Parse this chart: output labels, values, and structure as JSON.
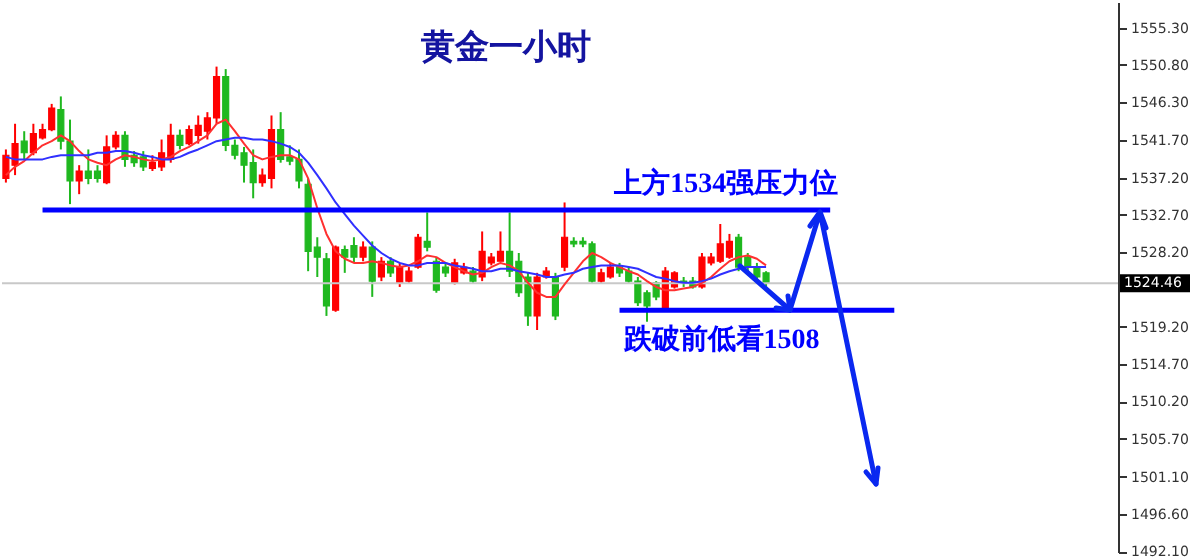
{
  "chart_data": {
    "type": "candlestick",
    "title": "黄金一小时",
    "categories": [
      null,
      null,
      null,
      null,
      null,
      null,
      null,
      null,
      null,
      null,
      null,
      null,
      null,
      null,
      null,
      null,
      null,
      null,
      null,
      null,
      null,
      null,
      null,
      null,
      null,
      null,
      null,
      null,
      null,
      null,
      null,
      null,
      null,
      null,
      null,
      null,
      null,
      null,
      null,
      null,
      null,
      null,
      null,
      null,
      null,
      null,
      null,
      null,
      null,
      null,
      null,
      null,
      null,
      null,
      null,
      null,
      null,
      null,
      null,
      null,
      null,
      null,
      null,
      null,
      null,
      null,
      null,
      null,
      null,
      null,
      null,
      null,
      null,
      null,
      null,
      null,
      null,
      null,
      null,
      null,
      null,
      null,
      null,
      null,
      null,
      null,
      null,
      null,
      null,
      null,
      null,
      null,
      null,
      null,
      null,
      null,
      null,
      null,
      null,
      null,
      null,
      null,
      null,
      null,
      null,
      null,
      null,
      null,
      null,
      null,
      null,
      null,
      null,
      null,
      null,
      null,
      null,
      null,
      null,
      null,
      null,
      null
    ],
    "ohlc": [
      [
        1537.1,
        1540.6,
        1536.6,
        1539.9
      ],
      [
        1538.7,
        1543.7,
        1537.5,
        1541.3
      ],
      [
        1541.6,
        1542.8,
        1539.4,
        1540.2
      ],
      [
        1540.2,
        1543.7,
        1539.9,
        1542.5
      ],
      [
        1542.0,
        1543.7,
        1541.8,
        1543.0
      ],
      [
        1543.0,
        1546.1,
        1542.8,
        1545.6
      ],
      [
        1545.4,
        1547.0,
        1540.6,
        1541.6
      ],
      [
        1541.6,
        1544.2,
        1534.0,
        1536.8
      ],
      [
        1536.8,
        1538.7,
        1535.2,
        1538.0
      ],
      [
        1538.0,
        1540.6,
        1536.4,
        1537.1
      ],
      [
        1538.0,
        1538.7,
        1536.6,
        1537.1
      ],
      [
        1536.6,
        1542.3,
        1536.4,
        1540.9
      ],
      [
        1540.9,
        1542.8,
        1540.6,
        1542.3
      ],
      [
        1542.3,
        1542.8,
        1538.5,
        1539.4
      ],
      [
        1539.9,
        1540.4,
        1538.5,
        1539.0
      ],
      [
        1539.7,
        1540.4,
        1538.0,
        1538.5
      ],
      [
        1538.3,
        1539.9,
        1538.0,
        1539.0
      ],
      [
        1538.5,
        1541.8,
        1538.0,
        1540.2
      ],
      [
        1539.4,
        1543.7,
        1539.0,
        1542.3
      ],
      [
        1542.3,
        1543.0,
        1540.6,
        1541.1
      ],
      [
        1541.3,
        1543.5,
        1541.1,
        1543.0
      ],
      [
        1542.3,
        1544.7,
        1541.3,
        1543.5
      ],
      [
        1542.8,
        1545.1,
        1541.8,
        1544.4
      ],
      [
        1544.4,
        1550.6,
        1543.7,
        1549.4
      ],
      [
        1549.4,
        1550.3,
        1540.4,
        1541.1
      ],
      [
        1541.1,
        1541.8,
        1539.4,
        1539.9
      ],
      [
        1540.2,
        1540.9,
        1536.6,
        1538.7
      ],
      [
        1539.0,
        1540.6,
        1534.7,
        1536.6
      ],
      [
        1536.6,
        1538.3,
        1536.1,
        1537.5
      ],
      [
        1537.1,
        1544.7,
        1535.9,
        1543.0
      ],
      [
        1543.0,
        1545.1,
        1539.0,
        1539.4
      ],
      [
        1539.7,
        1541.1,
        1538.7,
        1539.2
      ],
      [
        1539.4,
        1540.6,
        1535.9,
        1536.8
      ],
      [
        1536.4,
        1537.1,
        1525.9,
        1528.3
      ],
      [
        1528.8,
        1530.0,
        1525.2,
        1527.6
      ],
      [
        1527.4,
        1528.1,
        1520.5,
        1521.7
      ],
      [
        1521.2,
        1529.0,
        1521.0,
        1528.8
      ],
      [
        1528.5,
        1529.0,
        1525.7,
        1527.6
      ],
      [
        1529.0,
        1530.0,
        1526.9,
        1527.6
      ],
      [
        1527.6,
        1529.5,
        1527.1,
        1528.8
      ],
      [
        1528.8,
        1529.5,
        1522.8,
        1524.7
      ],
      [
        1525.2,
        1527.6,
        1524.7,
        1527.1
      ],
      [
        1527.1,
        1527.6,
        1525.2,
        1525.7
      ],
      [
        1524.5,
        1526.9,
        1524.0,
        1526.4
      ],
      [
        1524.7,
        1526.4,
        1524.5,
        1525.9
      ],
      [
        1526.4,
        1530.4,
        1526.2,
        1530.0
      ],
      [
        1529.5,
        1533.0,
        1528.3,
        1528.8
      ],
      [
        1527.1,
        1527.6,
        1523.3,
        1523.6
      ],
      [
        1526.4,
        1526.9,
        1525.2,
        1525.7
      ],
      [
        1524.5,
        1527.4,
        1524.3,
        1526.9
      ],
      [
        1525.7,
        1526.9,
        1525.5,
        1526.4
      ],
      [
        1525.9,
        1526.4,
        1524.5,
        1524.7
      ],
      [
        1525.2,
        1530.7,
        1524.7,
        1528.3
      ],
      [
        1526.9,
        1528.1,
        1526.6,
        1527.6
      ],
      [
        1527.1,
        1530.7,
        1527.1,
        1528.3
      ],
      [
        1528.3,
        1533.0,
        1525.2,
        1525.9
      ],
      [
        1527.1,
        1528.1,
        1522.8,
        1523.3
      ],
      [
        1525.2,
        1525.7,
        1519.3,
        1520.5
      ],
      [
        1520.5,
        1525.7,
        1518.8,
        1525.2
      ],
      [
        1525.2,
        1526.4,
        1525.0,
        1525.9
      ],
      [
        1525.2,
        1525.7,
        1520.0,
        1520.5
      ],
      [
        1526.4,
        1534.2,
        1525.9,
        1530.0
      ],
      [
        1529.5,
        1530.0,
        1528.8,
        1529.2
      ],
      [
        1529.5,
        1530.0,
        1528.8,
        1529.2
      ],
      [
        1529.2,
        1529.5,
        1524.5,
        1524.7
      ],
      [
        1524.7,
        1526.2,
        1524.5,
        1525.7
      ],
      [
        1525.2,
        1526.9,
        1525.0,
        1526.4
      ],
      [
        1526.4,
        1526.9,
        1525.2,
        1525.7
      ],
      [
        1525.9,
        1526.4,
        1524.5,
        1524.7
      ],
      [
        1524.7,
        1525.2,
        1521.7,
        1522.1
      ],
      [
        1523.3,
        1523.6,
        1519.8,
        1521.7
      ],
      [
        1524.5,
        1524.7,
        1522.4,
        1522.8
      ],
      [
        1521.2,
        1526.4,
        1521.2,
        1525.9
      ],
      [
        1524.0,
        1525.9,
        1523.8,
        1525.7
      ],
      [
        1524.7,
        1525.2,
        1524.0,
        1524.5
      ],
      [
        1524.7,
        1525.2,
        1523.8,
        1524.0
      ],
      [
        1524.0,
        1528.1,
        1523.8,
        1527.6
      ],
      [
        1526.9,
        1528.1,
        1526.6,
        1527.6
      ],
      [
        1527.1,
        1531.6,
        1526.9,
        1529.2
      ],
      [
        1527.6,
        1530.4,
        1527.4,
        1529.5
      ],
      [
        1530.0,
        1530.4,
        1525.9,
        1526.4
      ],
      [
        1527.6,
        1528.1,
        1525.9,
        1526.4
      ],
      [
        1526.4,
        1526.9,
        1524.7,
        1525.2
      ],
      [
        1525.7,
        1525.9,
        1524.0,
        1524.5
      ],
      null,
      null,
      null,
      null,
      null,
      null,
      null,
      null,
      null,
      null,
      null,
      null,
      null,
      null,
      null,
      null,
      null,
      null,
      null,
      null,
      null,
      null,
      null,
      null,
      null,
      null,
      null,
      null,
      null,
      null,
      null,
      null,
      null,
      null,
      null,
      null,
      null,
      null
    ],
    "colors": [
      "#ff0000",
      "#ff0000",
      "#1fb81f",
      "#ff0000",
      "#ff0000",
      "#ff0000",
      "#1fb81f",
      "#1fb81f",
      "#ff0000",
      "#1fb81f",
      "#1fb81f",
      "#ff0000",
      "#ff0000",
      "#1fb81f",
      "#1fb81f",
      "#1fb81f",
      "#ff0000",
      "#ff0000",
      "#ff0000",
      "#1fb81f",
      "#ff0000",
      "#ff0000",
      "#ff0000",
      "#ff0000",
      "#1fb81f",
      "#1fb81f",
      "#1fb81f",
      "#1fb81f",
      "#ff0000",
      "#ff0000",
      "#1fb81f",
      "#1fb81f",
      "#1fb81f",
      "#1fb81f",
      "#1fb81f",
      "#1fb81f",
      "#ff0000",
      "#1fb81f",
      "#1fb81f",
      "#ff0000",
      "#1fb81f",
      "#ff0000",
      "#1fb81f",
      "#ff0000",
      "#ff0000",
      "#ff0000",
      "#1fb81f",
      "#1fb81f",
      "#1fb81f",
      "#ff0000",
      "#ff0000",
      "#1fb81f",
      "#ff0000",
      "#ff0000",
      "#ff0000",
      "#1fb81f",
      "#1fb81f",
      "#1fb81f",
      "#ff0000",
      "#ff0000",
      "#1fb81f",
      "#ff0000",
      "#1fb81f",
      "#1fb81f",
      "#1fb81f",
      "#ff0000",
      "#ff0000",
      "#1fb81f",
      "#1fb81f",
      "#1fb81f",
      "#1fb81f",
      "#1fb81f",
      "#ff0000",
      "#ff0000",
      "#1fb81f",
      "#1fb81f",
      "#ff0000",
      "#ff0000",
      "#ff0000",
      "#ff0000",
      "#1fb81f",
      "#1fb81f",
      "#1fb81f",
      "#1fb81f",
      null,
      null,
      null,
      null,
      null,
      null,
      null,
      null,
      null,
      null,
      null,
      null,
      null,
      null,
      null,
      null,
      null,
      null,
      null,
      null,
      null,
      null,
      null,
      null,
      null,
      null,
      null,
      null,
      null,
      null,
      null,
      null,
      null,
      null,
      null,
      null,
      null,
      null
    ],
    "series": [
      {
        "type": "line",
        "color": "#ff3030",
        "values": [
          1537.5,
          1538.5,
          1539.2,
          1540.2,
          1541.1,
          1541.6,
          1542.3,
          1541.6,
          1540.4,
          1539.4,
          1539.0,
          1538.7,
          1539.4,
          1539.9,
          1539.7,
          1539.4,
          1539.2,
          1539.4,
          1539.7,
          1540.4,
          1540.9,
          1541.6,
          1542.3,
          1543.7,
          1544.2,
          1542.8,
          1541.3,
          1539.9,
          1539.4,
          1539.7,
          1539.9,
          1539.9,
          1539.4,
          1537.1,
          1533.5,
          1530.4,
          1528.3,
          1527.4,
          1526.9,
          1526.9,
          1527.1,
          1526.9,
          1526.6,
          1526.4,
          1526.6,
          1527.1,
          1527.8,
          1527.6,
          1526.9,
          1526.4,
          1525.9,
          1525.5,
          1525.7,
          1526.4,
          1526.9,
          1526.6,
          1525.9,
          1524.5,
          1523.3,
          1522.8,
          1522.8,
          1524.3,
          1525.7,
          1527.1,
          1528.1,
          1527.6,
          1526.9,
          1526.4,
          1525.9,
          1525.5,
          1524.7,
          1524.0,
          1523.6,
          1523.6,
          1523.8,
          1524.0,
          1524.5,
          1525.2,
          1526.2,
          1527.1,
          1527.6,
          1527.8,
          1527.4,
          1526.6,
          null,
          null,
          null,
          null,
          null,
          null,
          null,
          null,
          null,
          null,
          null,
          null,
          null,
          null,
          null,
          null,
          null,
          null,
          null,
          null,
          null,
          null,
          null,
          null,
          null,
          null,
          null,
          null,
          null,
          null,
          null,
          null,
          null,
          null,
          null,
          null,
          null,
          null
        ]
      },
      {
        "type": "line",
        "color": "#3030ff",
        "values": [
          1539.7,
          1539.4,
          1539.4,
          1539.4,
          1539.4,
          1539.7,
          1539.9,
          1539.9,
          1539.9,
          1539.9,
          1540.2,
          1540.2,
          1540.4,
          1540.4,
          1540.2,
          1539.9,
          1539.7,
          1539.4,
          1539.4,
          1539.7,
          1540.2,
          1540.6,
          1541.1,
          1541.6,
          1541.8,
          1542.0,
          1542.0,
          1541.8,
          1541.8,
          1541.6,
          1541.3,
          1540.9,
          1540.2,
          1539.0,
          1537.5,
          1535.9,
          1534.2,
          1532.8,
          1531.4,
          1530.2,
          1529.0,
          1528.1,
          1527.4,
          1526.9,
          1526.6,
          1526.6,
          1526.9,
          1526.9,
          1526.9,
          1526.6,
          1526.4,
          1526.2,
          1525.9,
          1525.9,
          1526.2,
          1526.2,
          1525.9,
          1525.7,
          1525.5,
          1525.2,
          1525.2,
          1525.5,
          1525.7,
          1526.2,
          1526.4,
          1526.6,
          1526.6,
          1526.6,
          1526.4,
          1526.2,
          1525.7,
          1525.2,
          1525.0,
          1524.7,
          1524.5,
          1524.5,
          1524.7,
          1525.0,
          1525.5,
          1525.9,
          1526.2,
          1526.4,
          1526.4,
          1526.4,
          null,
          null,
          null,
          null,
          null,
          null,
          null,
          null,
          null,
          null,
          null,
          null,
          null,
          null,
          null,
          null,
          null,
          null,
          null,
          null,
          null,
          null,
          null,
          null,
          null,
          null,
          null,
          null,
          null,
          null,
          null,
          null,
          null,
          null,
          null,
          null,
          null,
          null
        ]
      },
      {
        "type": "line",
        "name": "上方1534强压力位",
        "color": "#0000ff",
        "values": [
          null,
          null,
          null,
          null,
          1533.3,
          1533.3,
          1533.3,
          1533.3,
          1533.3,
          1533.3,
          1533.3,
          1533.3,
          1533.3,
          1533.3,
          1533.3,
          1533.3,
          1533.3,
          1533.3,
          1533.3,
          1533.3,
          1533.3,
          1533.3,
          1533.3,
          1533.3,
          1533.3,
          1533.3,
          1533.3,
          1533.3,
          1533.3,
          1533.3,
          1533.3,
          1533.3,
          1533.3,
          1533.3,
          1533.3,
          1533.3,
          1533.3,
          1533.3,
          1533.3,
          1533.3,
          1533.3,
          1533.3,
          1533.3,
          1533.3,
          1533.3,
          1533.3,
          1533.3,
          1533.3,
          1533.3,
          1533.3,
          1533.3,
          1533.3,
          1533.3,
          1533.3,
          1533.3,
          1533.3,
          1533.3,
          1533.3,
          1533.3,
          1533.3,
          1533.3,
          1533.3,
          1533.3,
          1533.3,
          1533.3,
          1533.3,
          1533.3,
          1533.3,
          1533.3,
          1533.3,
          1533.3,
          1533.3,
          1533.3,
          1533.3,
          1533.3,
          1533.3,
          1533.3,
          1533.3,
          1533.3,
          1533.3,
          1533.3,
          1533.3,
          1533.3,
          1533.3,
          1533.3,
          1533.3,
          1533.3,
          1533.3,
          1533.3,
          1533.3,
          1533.3,
          null,
          null,
          null,
          null,
          null,
          null,
          null,
          null,
          null,
          null,
          null,
          null,
          null,
          null,
          null,
          null,
          null,
          null,
          null,
          null,
          null,
          null,
          null,
          null,
          null,
          null,
          null,
          null,
          null,
          null,
          null
        ]
      },
      {
        "type": "line",
        "name": "跌破前低看1508",
        "color": "#0000ff",
        "values": [
          null,
          null,
          null,
          null,
          null,
          null,
          null,
          null,
          null,
          null,
          null,
          null,
          null,
          null,
          null,
          null,
          null,
          null,
          null,
          null,
          null,
          null,
          null,
          null,
          null,
          null,
          null,
          null,
          null,
          null,
          null,
          null,
          null,
          null,
          null,
          null,
          null,
          null,
          null,
          null,
          null,
          null,
          null,
          null,
          null,
          null,
          null,
          null,
          null,
          null,
          null,
          null,
          null,
          null,
          null,
          null,
          null,
          null,
          null,
          null,
          null,
          null,
          null,
          null,
          null,
          null,
          null,
          1521.2,
          1521.2,
          1521.2,
          1521.2,
          1521.2,
          1521.2,
          1521.2,
          1521.2,
          1521.2,
          1521.2,
          1521.2,
          1521.2,
          1521.2,
          1521.2,
          1521.2,
          1521.2,
          1521.2,
          1521.2,
          1521.2,
          1521.2,
          1521.2,
          1521.2,
          1521.2,
          1521.2,
          1521.2,
          1521.2,
          1521.2,
          1521.2,
          1521.2,
          1521.2,
          1521.2,
          null,
          null,
          null,
          null,
          null,
          null,
          null,
          null,
          null,
          null,
          null,
          null,
          null,
          null,
          null,
          null,
          null,
          null,
          null,
          null,
          null,
          null,
          null,
          null
        ]
      }
    ],
    "ref_lines": [
      {
        "axis": "y",
        "value": 1524.46,
        "label": "1524.46",
        "color": "#c8c8c8"
      }
    ],
    "ylim": [
      1492.0,
      1558.4
    ],
    "yticks": [
      {
        "value": 1555.3,
        "label": "1555.30"
      },
      {
        "value": 1550.8,
        "label": "1550.80"
      },
      {
        "value": 1546.3,
        "label": "1546.30"
      },
      {
        "value": 1541.7,
        "label": "1541.70"
      },
      {
        "value": 1537.2,
        "label": "1537.20"
      },
      {
        "value": 1532.7,
        "label": "1532.70"
      },
      {
        "value": 1528.2,
        "label": "1528.20"
      },
      {
        "value": 1519.2,
        "label": "1519.20"
      },
      {
        "value": 1514.7,
        "label": "1514.70"
      },
      {
        "value": 1510.2,
        "label": "1510.20"
      },
      {
        "value": 1505.7,
        "label": "1505.70"
      },
      {
        "value": 1501.1,
        "label": "1501.10"
      },
      {
        "value": 1496.6,
        "label": "1496.60"
      },
      {
        "value": 1492.1,
        "label": "1492.10"
      }
    ],
    "tick_labels": "y"
  }
}
